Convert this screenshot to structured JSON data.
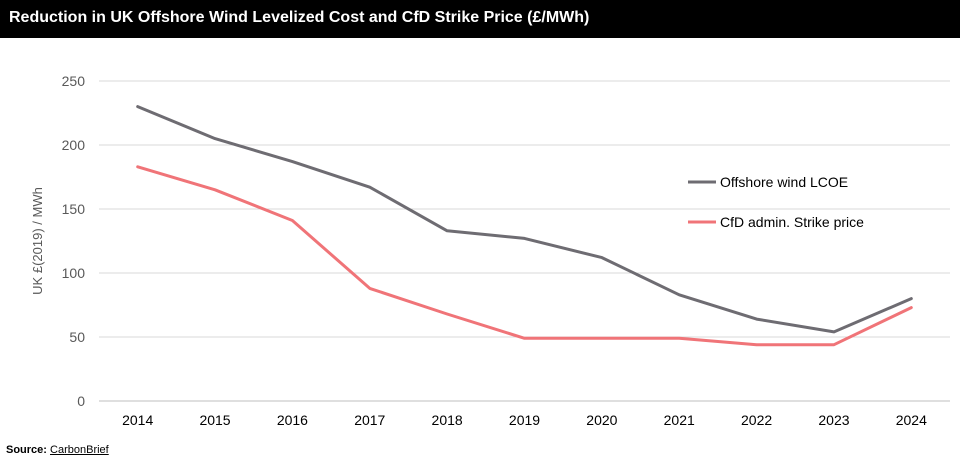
{
  "chart_data": {
    "type": "line",
    "title": "Reduction in UK Offshore Wind Levelized Cost and CfD Strike Price (£/MWh)",
    "ylabel": "UK £(2019) / MWh",
    "xlabel": "",
    "ylim": [
      0,
      250
    ],
    "yticks": [
      0,
      50,
      100,
      150,
      200,
      250
    ],
    "categories": [
      "2014",
      "2015",
      "2016",
      "2017",
      "2018",
      "2019",
      "2020",
      "2021",
      "2022",
      "2023",
      "2024"
    ],
    "grid": true,
    "legend_position": "right",
    "series": [
      {
        "name": "Offshore wind LCOE",
        "color": "#6e6c72",
        "values": [
          230,
          205,
          187,
          167,
          133,
          127,
          112,
          83,
          64,
          54,
          80
        ]
      },
      {
        "name": "CfD admin. Strike price",
        "color": "#f07478",
        "values": [
          183,
          165,
          141,
          88,
          68,
          49,
          49,
          49,
          44,
          44,
          73
        ]
      }
    ]
  },
  "source": {
    "label": "Source:",
    "name": "CarbonBrief"
  }
}
